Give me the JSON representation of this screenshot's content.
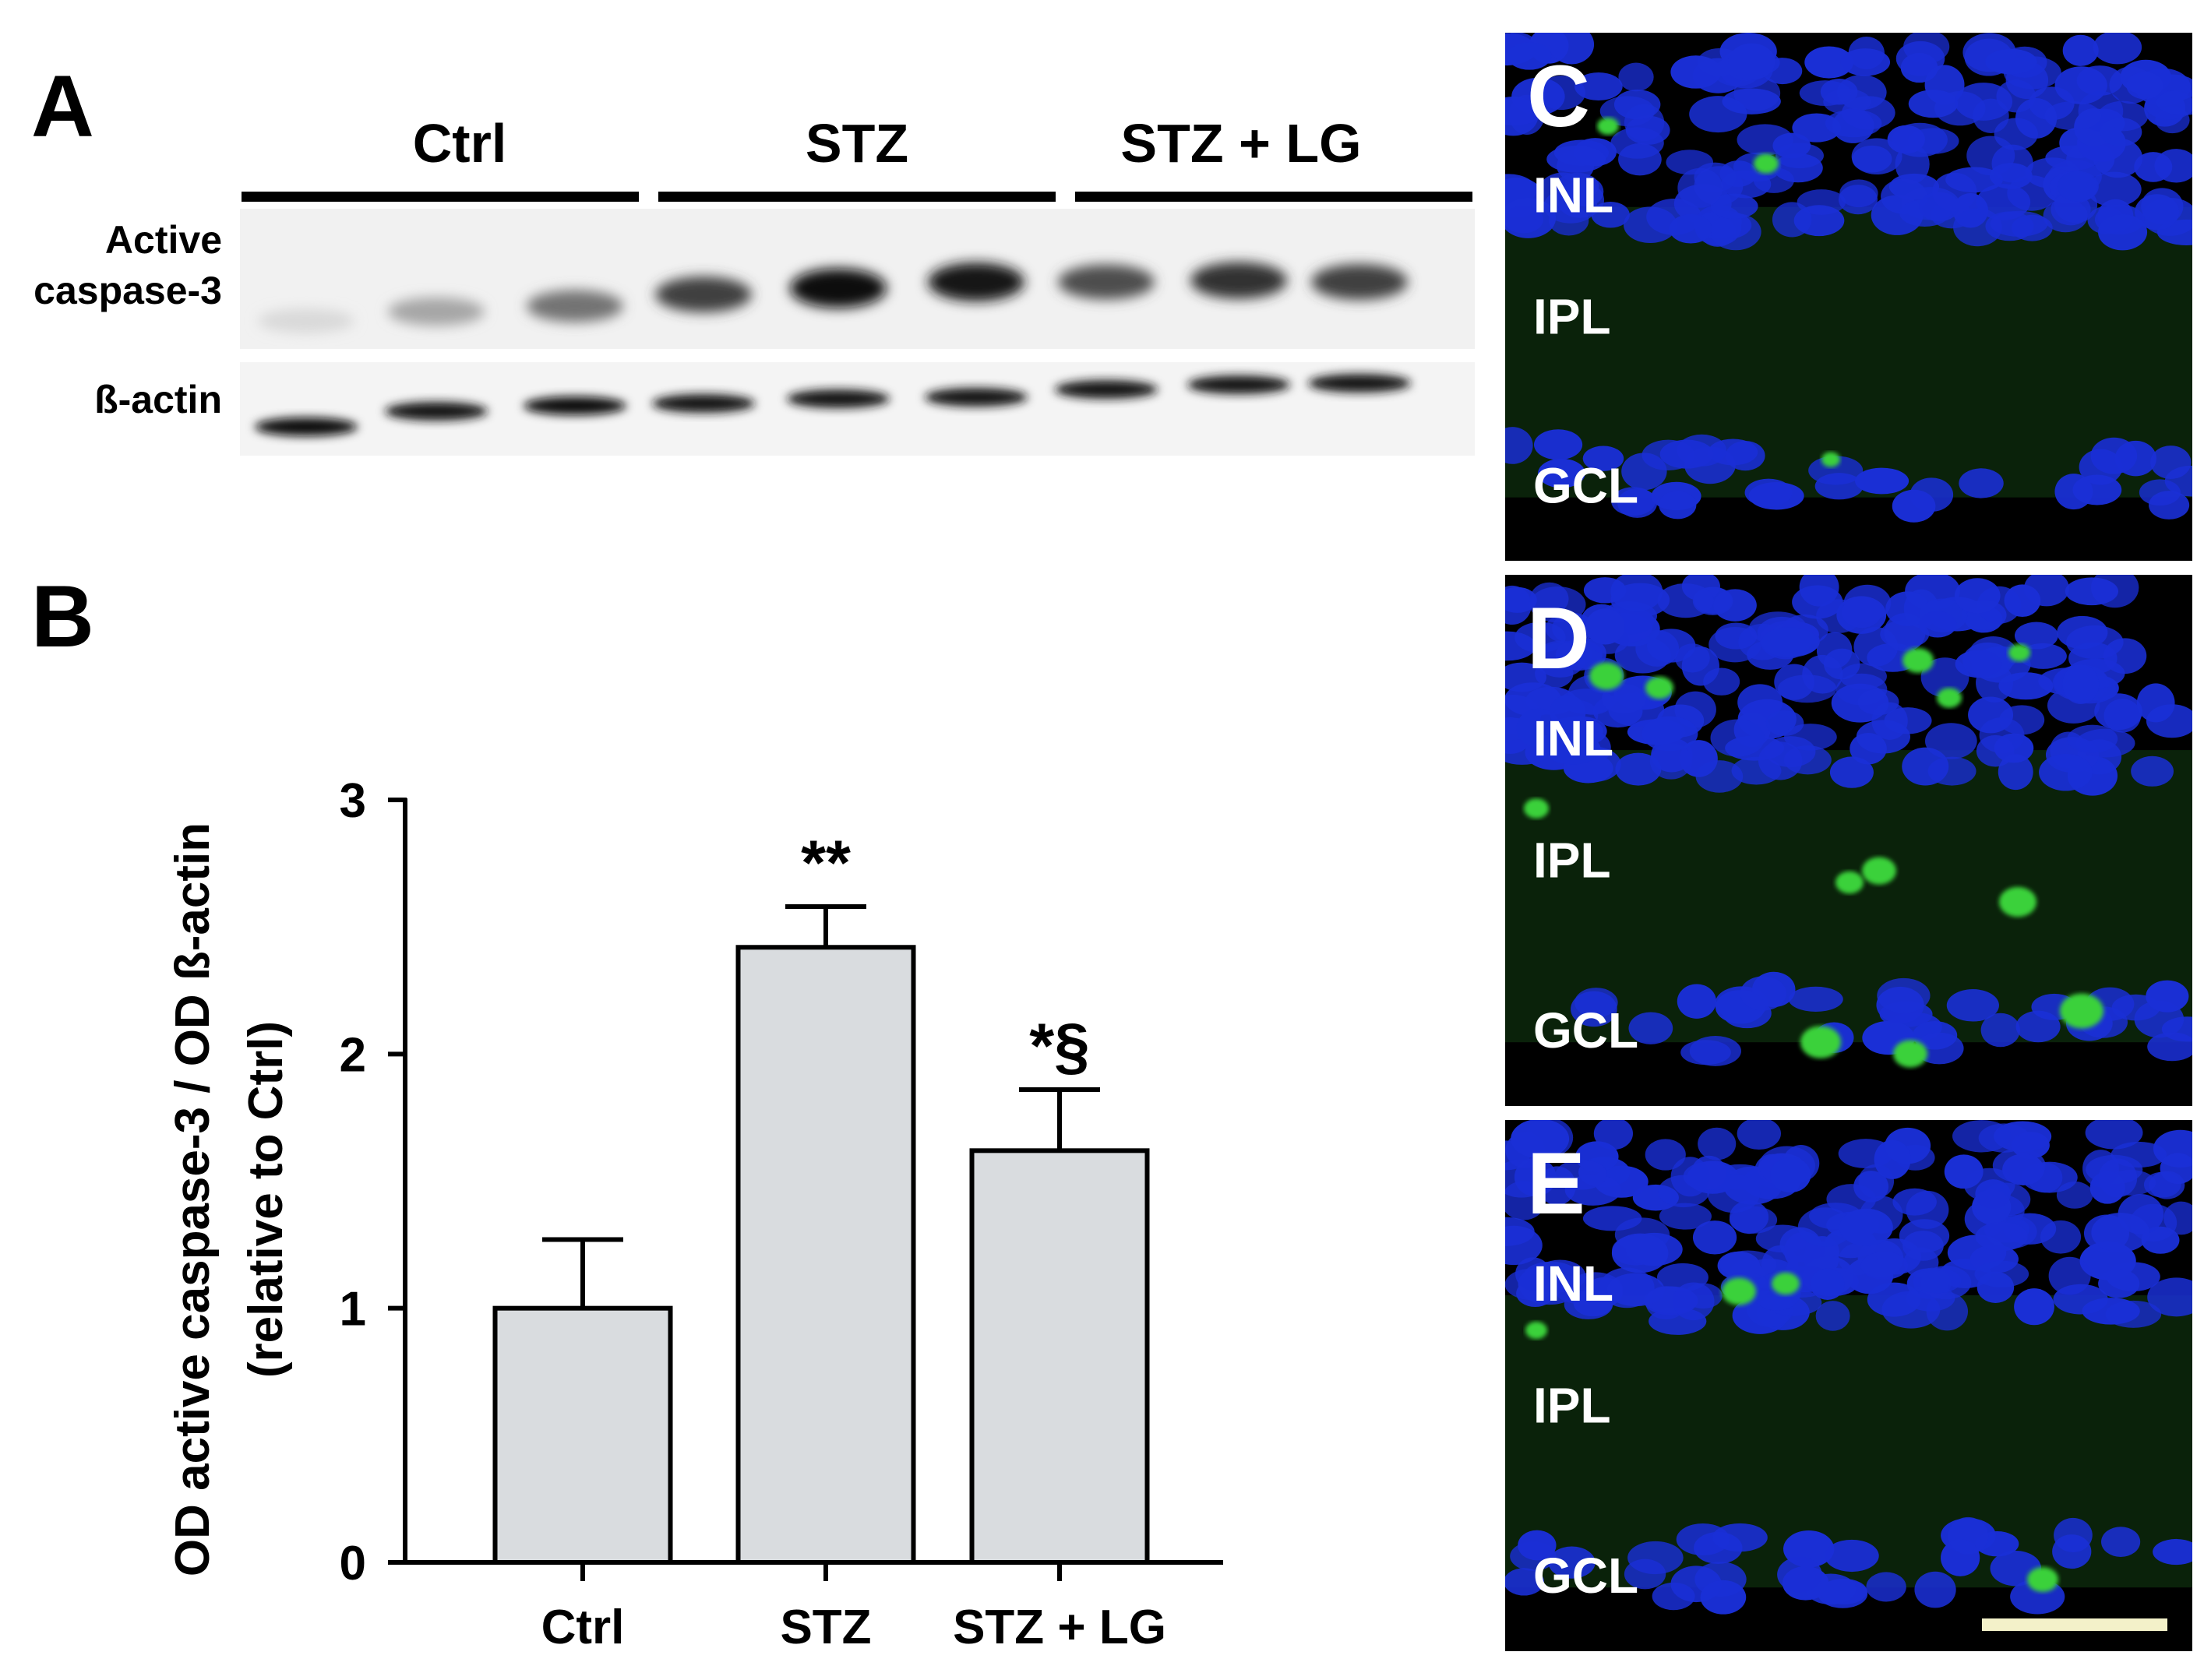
{
  "panels": {
    "A": {
      "letter": "A",
      "groups": [
        "Ctrl",
        "STZ",
        "STZ + LG"
      ],
      "row_labels": {
        "caspase_line1": "Active",
        "caspase_line2": "caspase-3",
        "actin": "ß-actin"
      },
      "caspase_band_intensity": [
        0.15,
        0.35,
        0.55,
        0.75,
        0.95,
        0.9,
        0.7,
        0.8,
        0.75
      ],
      "actin_band_intensity": [
        0.95,
        0.9,
        0.95,
        0.9,
        0.9,
        0.9,
        0.9,
        0.9,
        0.9
      ]
    },
    "B": {
      "letter": "B"
    },
    "C": {
      "letter": "C",
      "layers": [
        "INL",
        "IPL",
        "GCL"
      ]
    },
    "D": {
      "letter": "D",
      "layers": [
        "INL",
        "IPL",
        "GCL"
      ]
    },
    "E": {
      "letter": "E",
      "layers": [
        "INL",
        "IPL",
        "GCL"
      ]
    }
  },
  "chart_data": {
    "type": "bar",
    "categories": [
      "Ctrl",
      "STZ",
      "STZ + LG"
    ],
    "values": [
      1.0,
      2.42,
      1.62
    ],
    "errors": [
      0.27,
      0.16,
      0.24
    ],
    "annotations": [
      "",
      "**",
      "*§"
    ],
    "ylabel_line1": "OD active caspase-3 / OD ß-actin",
    "ylabel_line2": "(relative to Ctrl)",
    "ylim": [
      0,
      3
    ],
    "yticks": [
      "0",
      "1",
      "2",
      "3"
    ],
    "bar_color": "#d9dcdf",
    "grid": false
  },
  "colors": {
    "nuclei": "#1a2fd6",
    "signal": "#3bd13b",
    "background": "#000000",
    "scale_bar": "#f3f1c9"
  }
}
